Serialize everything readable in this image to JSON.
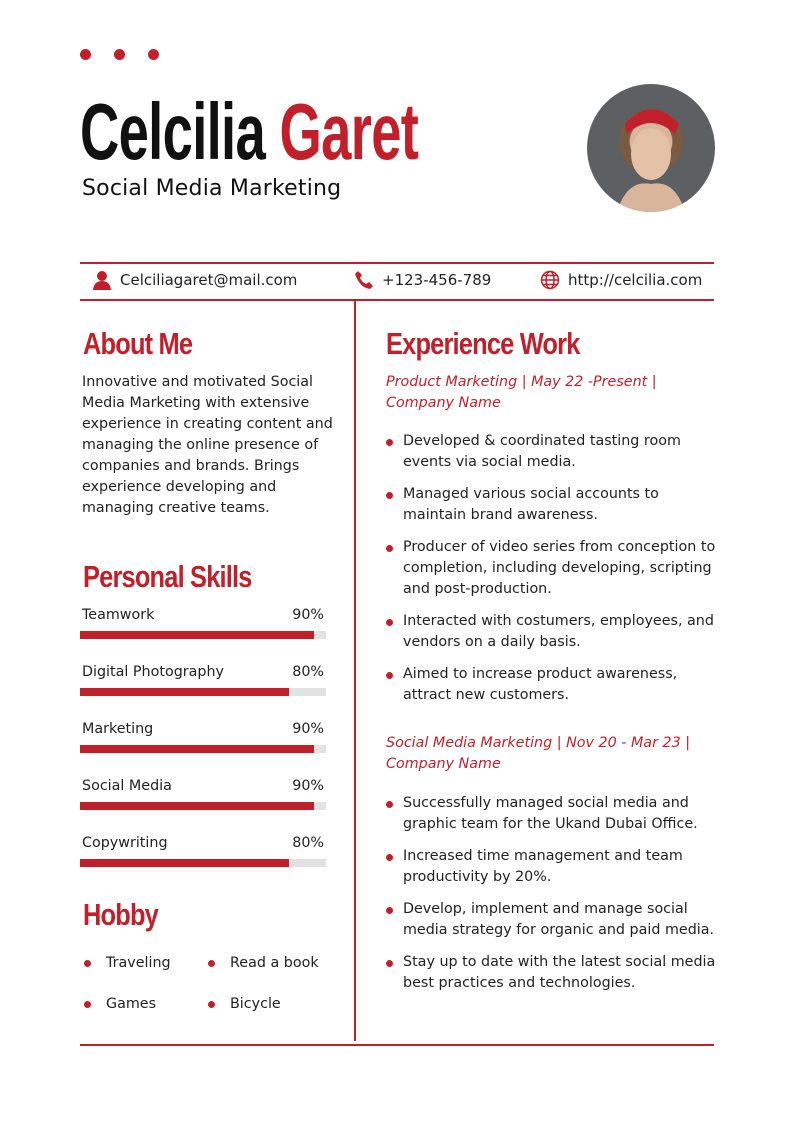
{
  "header": {
    "first_name": "Celcilia",
    "last_name": "Garet",
    "title": "Social Media Marketing"
  },
  "contact": {
    "email": "Celciliagaret@mail.com",
    "phone": "+123-456-789",
    "website": "http://celcilia.com"
  },
  "about": {
    "heading": "About Me",
    "text": "Innovative and motivated Social Media Marketing with extensive experience in creating content and managing the online presence of companies and brands. Brings experience developing and managing creative teams."
  },
  "skills": {
    "heading": "Personal Skills",
    "items": [
      {
        "label": "Teamwork",
        "value": "90%",
        "level": 90
      },
      {
        "label": "Digital Photography",
        "value": "80%",
        "level": 80
      },
      {
        "label": "Marketing",
        "value": "90%",
        "level": 90
      },
      {
        "label": "Social Media",
        "value": "90%",
        "level": 90
      },
      {
        "label": "Copywriting",
        "value": "80%",
        "level": 80
      }
    ]
  },
  "hobby": {
    "heading": "Hobby",
    "items": [
      "Traveling",
      "Read a book",
      "Games",
      "Bicycle"
    ]
  },
  "experience": {
    "heading": "Experience Work",
    "jobs": [
      {
        "title": "Product Marketing | May 22 -Present | Company Name",
        "bullets": [
          "Developed & coordinated tasting room events via social media.",
          "Managed various social accounts to maintain brand awareness.",
          "Producer of video series from conception to completion, including developing, scripting and post-production.",
          "Interacted with costumers, employees, and vendors on a daily basis.",
          "Aimed to increase product awareness, attract new customers."
        ]
      },
      {
        "title": "Social Media Marketing | Nov 20 - Mar 23 | Company Name",
        "bullets": [
          "Successfully managed social media and graphic team for the Ukand Dubai Office.",
          "Increased time management and team productivity by 20%.",
          "Develop, implement and manage social media strategy for organic and paid media.",
          "Stay up to date with the latest social media best practices and technologies."
        ]
      }
    ]
  },
  "colors": {
    "accent": "#c1202a"
  }
}
